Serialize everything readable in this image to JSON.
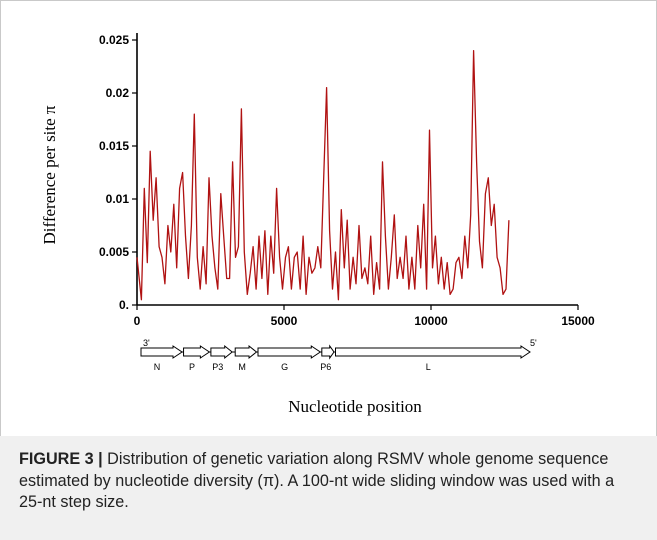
{
  "caption": {
    "label": "FIGURE 3 |",
    "text": " Distribution of genetic variation along RSMV whole genome sequence estimated by nucleotide diversity (π). A 100-nt wide sliding window was used with a 25-nt step size."
  },
  "genome_map": {
    "end_left": "3'",
    "end_right": "5'",
    "genes": [
      {
        "label": "N",
        "start": 0,
        "end": 1350
      },
      {
        "label": "P",
        "start": 1400,
        "end": 2250
      },
      {
        "label": "P3",
        "start": 2300,
        "end": 3000
      },
      {
        "label": "M",
        "start": 3100,
        "end": 3800
      },
      {
        "label": "G",
        "start": 3850,
        "end": 5900
      },
      {
        "label": "P6",
        "start": 5950,
        "end": 6350
      },
      {
        "label": "L",
        "start": 6400,
        "end": 12800
      }
    ]
  },
  "colors": {
    "line": "#b01212",
    "axis": "#000000"
  },
  "chart_data": {
    "type": "line",
    "title": "",
    "xlabel": "Nucleotide position",
    "ylabel": "Difference per site π",
    "xlim": [
      0,
      15000
    ],
    "ylim": [
      0,
      0.025
    ],
    "x_ticks": [
      0,
      5000,
      10000,
      15000
    ],
    "x_tick_labels": [
      "0",
      "5000",
      "10000",
      "15000"
    ],
    "y_ticks": [
      0,
      0.005,
      0.01,
      0.015,
      0.02,
      0.025
    ],
    "y_tick_labels": [
      "0.",
      "0.005",
      "0.01",
      "0.015",
      "0.02",
      "0.025"
    ],
    "grid": false,
    "series": [
      {
        "values_x": [
          0,
          150,
          250,
          350,
          450,
          550,
          650,
          750,
          850,
          950,
          1050,
          1150,
          1250,
          1350,
          1450,
          1550,
          1650,
          1750,
          1850,
          1950,
          2050,
          2150,
          2250,
          2350,
          2450,
          2550,
          2650,
          2750,
          2850,
          2950,
          3050,
          3150,
          3250,
          3350,
          3450,
          3550,
          3650,
          3750,
          3850,
          3950,
          4050,
          4150,
          4250,
          4350,
          4450,
          4550,
          4650,
          4750,
          4850,
          4950,
          5050,
          5150,
          5250,
          5350,
          5450,
          5550,
          5650,
          5750,
          5850,
          5950,
          6050,
          6150,
          6250,
          6350,
          6450,
          6550,
          6650,
          6750,
          6850,
          6950,
          7050,
          7150,
          7250,
          7350,
          7450,
          7550,
          7650,
          7750,
          7850,
          7950,
          8050,
          8150,
          8250,
          8350,
          8450,
          8550,
          8650,
          8750,
          8850,
          8950,
          9050,
          9150,
          9250,
          9350,
          9450,
          9550,
          9650,
          9750,
          9850,
          9950,
          10050,
          10150,
          10250,
          10350,
          10450,
          10550,
          10650,
          10750,
          10850,
          10950,
          11050,
          11150,
          11250,
          11350,
          11450,
          11550,
          11650,
          11750,
          11850,
          11950,
          12050,
          12150,
          12250,
          12350,
          12450,
          12550,
          12650
        ],
        "values_y": [
          0.0045,
          0.0005,
          0.011,
          0.004,
          0.0145,
          0.008,
          0.012,
          0.0055,
          0.0045,
          0.002,
          0.0075,
          0.005,
          0.0095,
          0.0035,
          0.011,
          0.0125,
          0.0065,
          0.0025,
          0.0075,
          0.018,
          0.0045,
          0.0015,
          0.0055,
          0.002,
          0.012,
          0.0065,
          0.0035,
          0.0015,
          0.0105,
          0.0065,
          0.0025,
          0.0025,
          0.0135,
          0.0045,
          0.0055,
          0.0185,
          0.005,
          0.001,
          0.003,
          0.0055,
          0.0015,
          0.0065,
          0.0025,
          0.007,
          0.001,
          0.0065,
          0.003,
          0.011,
          0.0045,
          0.0015,
          0.0045,
          0.0055,
          0.0015,
          0.0045,
          0.005,
          0.0015,
          0.0065,
          0.001,
          0.0045,
          0.003,
          0.0035,
          0.0055,
          0.0035,
          0.012,
          0.0205,
          0.007,
          0.0015,
          0.005,
          0.0005,
          0.009,
          0.0035,
          0.008,
          0.0015,
          0.0045,
          0.002,
          0.0075,
          0.0025,
          0.0035,
          0.002,
          0.0065,
          0.001,
          0.004,
          0.0015,
          0.0135,
          0.0065,
          0.0015,
          0.0045,
          0.0085,
          0.0025,
          0.0045,
          0.0025,
          0.0065,
          0.0015,
          0.0045,
          0.0015,
          0.0075,
          0.0035,
          0.0095,
          0.0015,
          0.0165,
          0.0035,
          0.0065,
          0.002,
          0.0045,
          0.0015,
          0.004,
          0.001,
          0.0015,
          0.004,
          0.0045,
          0.0025,
          0.0065,
          0.0035,
          0.0085,
          0.024,
          0.0135,
          0.006,
          0.0035,
          0.0105,
          0.012,
          0.0075,
          0.0095,
          0.0045,
          0.0035,
          0.001,
          0.0015,
          0.008
        ]
      }
    ]
  }
}
